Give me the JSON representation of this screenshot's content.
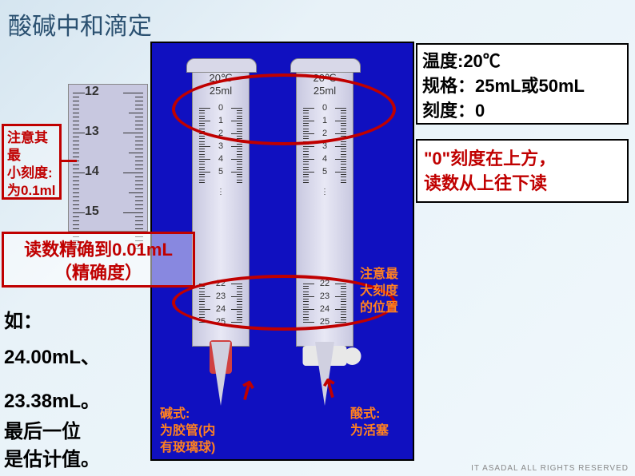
{
  "title": "酸碱中和滴定",
  "burette": {
    "temp": "20℃",
    "vol": "25ml"
  },
  "info1": {
    "l1": "温度:20℃",
    "l2": "规格：25mL或50mL",
    "l3": "刻度：0"
  },
  "info2": {
    "l1": "\"0\"刻度在上方，",
    "l2": "读数从上往下读"
  },
  "redbox1": {
    "l1": "注意其最",
    "l2": "小刻度:",
    "l3": "为0.1ml"
  },
  "redbox2": {
    "l1": "读数精确到0.01mL",
    "l2": "（精确度）"
  },
  "note1": {
    "l1": "碱式:",
    "l2": "为胶管(内",
    "l3": "有玻璃球)"
  },
  "note2": {
    "l1": "酸式:",
    "l2": "为活塞"
  },
  "note3": {
    "l1": "注意最",
    "l2": "大刻度",
    "l3": "的位置"
  },
  "bl": {
    "t1": "如：",
    "t2": "24.00mL、",
    "t3": "23.38mL。",
    "t4": "最后一位",
    "t5": "是估计值。"
  },
  "ruler": {
    "ticks": [
      12,
      13,
      14,
      15
    ]
  },
  "scale": {
    "major": [
      0,
      1,
      2,
      3,
      4,
      5,
      22,
      23,
      24,
      25
    ]
  },
  "footer": "IT ASADAL ALL RIGHTS RESERVED",
  "colors": {
    "bg_panel": "#1010c0",
    "accent": "#c00000",
    "note": "#ff8020"
  }
}
